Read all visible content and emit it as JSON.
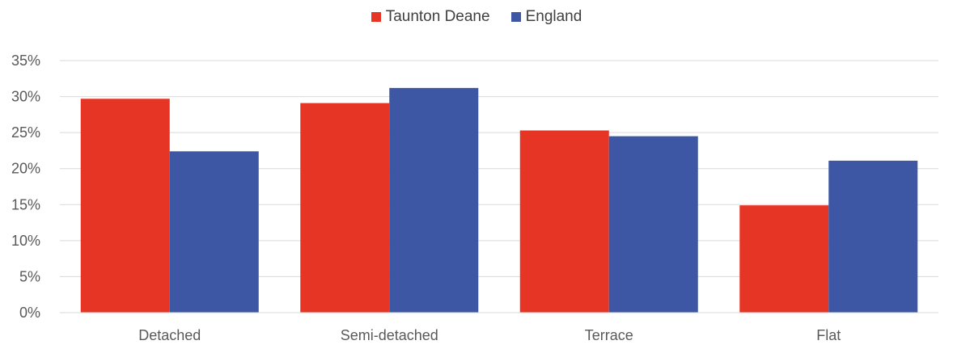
{
  "colors": {
    "taunton_deane": "#e63525",
    "england": "#3d57a4",
    "grid": "#d9d9d9",
    "text": "#595959"
  },
  "chart_data": {
    "type": "bar",
    "title": "",
    "xlabel": "",
    "ylabel": "",
    "categories": [
      "Detached",
      "Semi-detached",
      "Terrace",
      "Flat"
    ],
    "series": [
      {
        "name": "Taunton Deane",
        "values": [
          29.7,
          29.1,
          25.3,
          14.9
        ]
      },
      {
        "name": "England",
        "values": [
          22.4,
          31.2,
          24.5,
          21.1
        ]
      }
    ],
    "ylim": [
      0,
      35
    ],
    "yticks": [
      0,
      5,
      10,
      15,
      20,
      25,
      30,
      35
    ],
    "ytick_labels": [
      "0%",
      "5%",
      "10%",
      "15%",
      "20%",
      "25%",
      "30%",
      "35%"
    ],
    "grid": true,
    "legend_position": "top-center"
  }
}
